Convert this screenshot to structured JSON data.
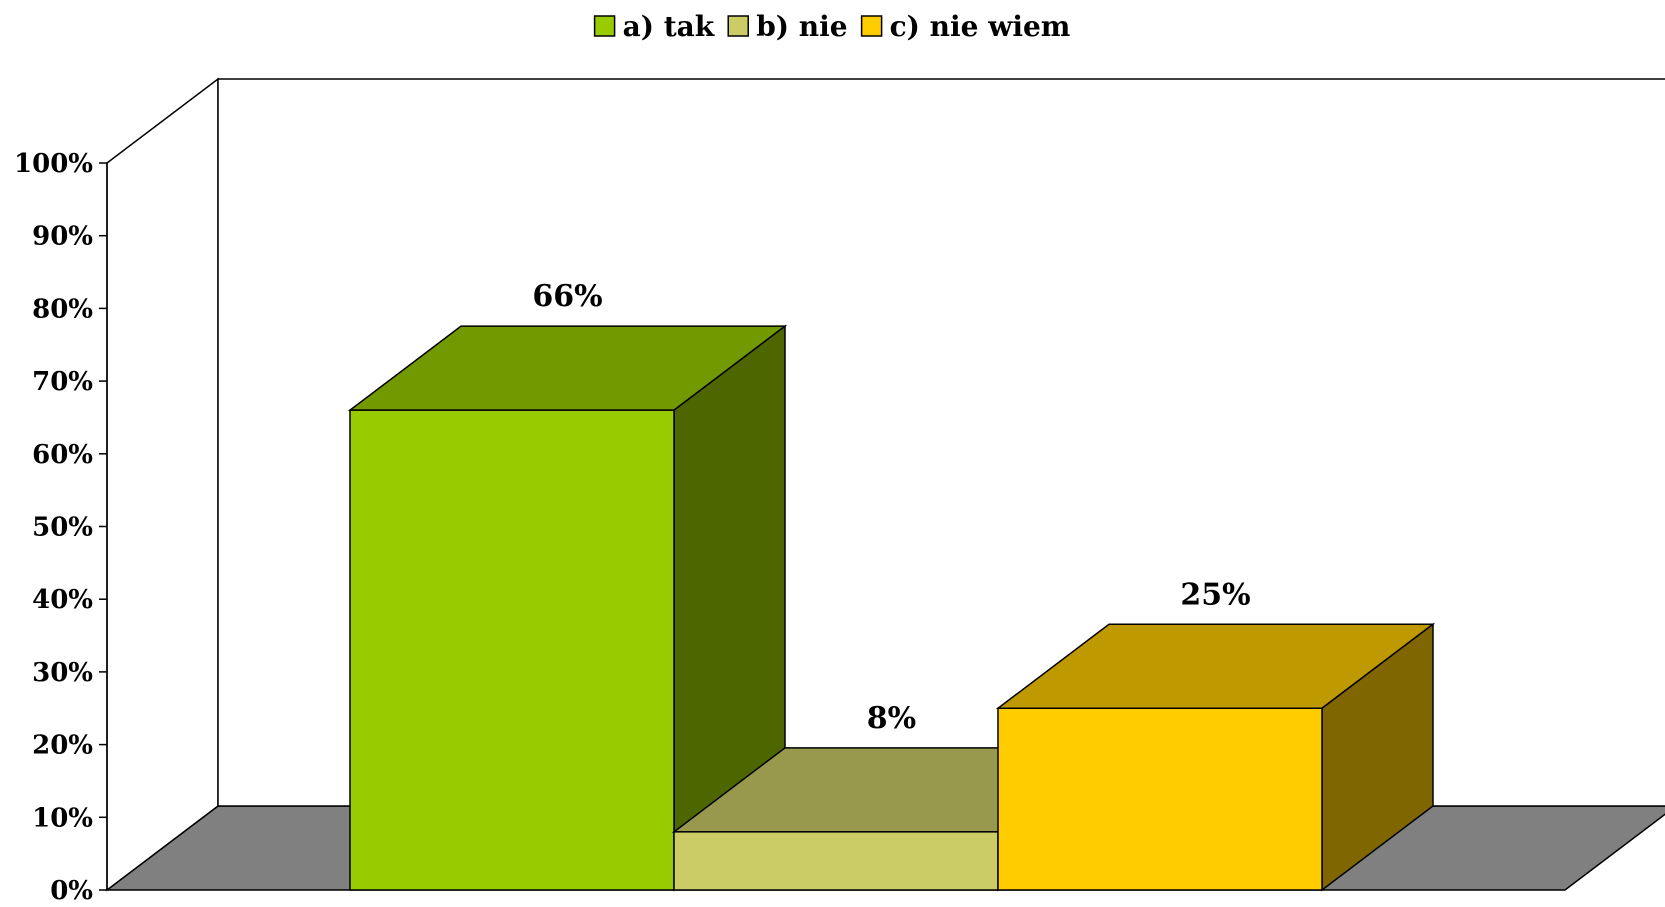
{
  "chart_data": {
    "type": "bar",
    "title": "",
    "xlabel": "",
    "ylabel": "",
    "ylim": [
      0,
      100
    ],
    "y_ticks": [
      "0%",
      "10%",
      "20%",
      "30%",
      "40%",
      "50%",
      "60%",
      "70%",
      "80%",
      "90%",
      "100%"
    ],
    "legend_position": "top-center",
    "grid": false,
    "three_d": true,
    "series": [
      {
        "name": "a) tak",
        "value": 66,
        "label": "66%",
        "color": "#99cc00"
      },
      {
        "name": "b) nie",
        "value": 8,
        "label": "8%",
        "color": "#cccc66"
      },
      {
        "name": "c) nie wiem",
        "value": 25,
        "label": "25%",
        "color": "#ffcc00"
      }
    ],
    "floor_color": "#808080"
  }
}
